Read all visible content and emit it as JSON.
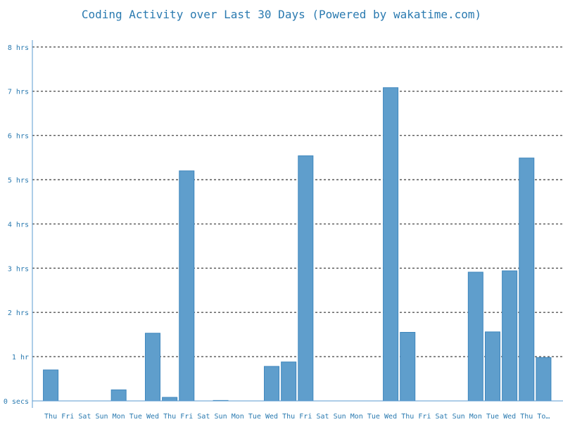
{
  "chart_data": {
    "type": "bar",
    "title": "Coding Activity over Last 30 Days (Powered by wakatime.com)",
    "xlabel": "",
    "ylabel": "",
    "ylim": [
      0,
      8
    ],
    "grid": true,
    "y_ticks": [
      {
        "value": 0,
        "label": "0 secs"
      },
      {
        "value": 1,
        "label": "1 hr"
      },
      {
        "value": 2,
        "label": "2 hrs"
      },
      {
        "value": 3,
        "label": "3 hrs"
      },
      {
        "value": 4,
        "label": "4 hrs"
      },
      {
        "value": 5,
        "label": "5 hrs"
      },
      {
        "value": 6,
        "label": "6 hrs"
      },
      {
        "value": 7,
        "label": "7 hrs"
      },
      {
        "value": 8,
        "label": "8 hrs"
      }
    ],
    "categories": [
      "Thu",
      "Fri",
      "Sat",
      "Sun",
      "Mon",
      "Tue",
      "Wed",
      "Thu",
      "Fri",
      "Sat",
      "Sun",
      "Mon",
      "Tue",
      "Wed",
      "Thu",
      "Fri",
      "Sat",
      "Sun",
      "Mon",
      "Tue",
      "Wed",
      "Thu",
      "Fri",
      "Sat",
      "Sun",
      "Mon",
      "Tue",
      "Wed",
      "Thu",
      "To…"
    ],
    "values": [
      0.7,
      0,
      0,
      0,
      0.25,
      0,
      1.53,
      0.08,
      5.2,
      0,
      0.01,
      0,
      0,
      0.78,
      0.88,
      5.54,
      0,
      0,
      0,
      0,
      7.08,
      1.55,
      0,
      0,
      0,
      2.91,
      1.56,
      2.94,
      5.49,
      0.98
    ],
    "colors": {
      "bar_fill": "#5f9ecc",
      "bar_stroke": "#3e86bd",
      "text": "#2a7ab0",
      "grid": "#555555",
      "axis": "#5b9bd0"
    }
  }
}
